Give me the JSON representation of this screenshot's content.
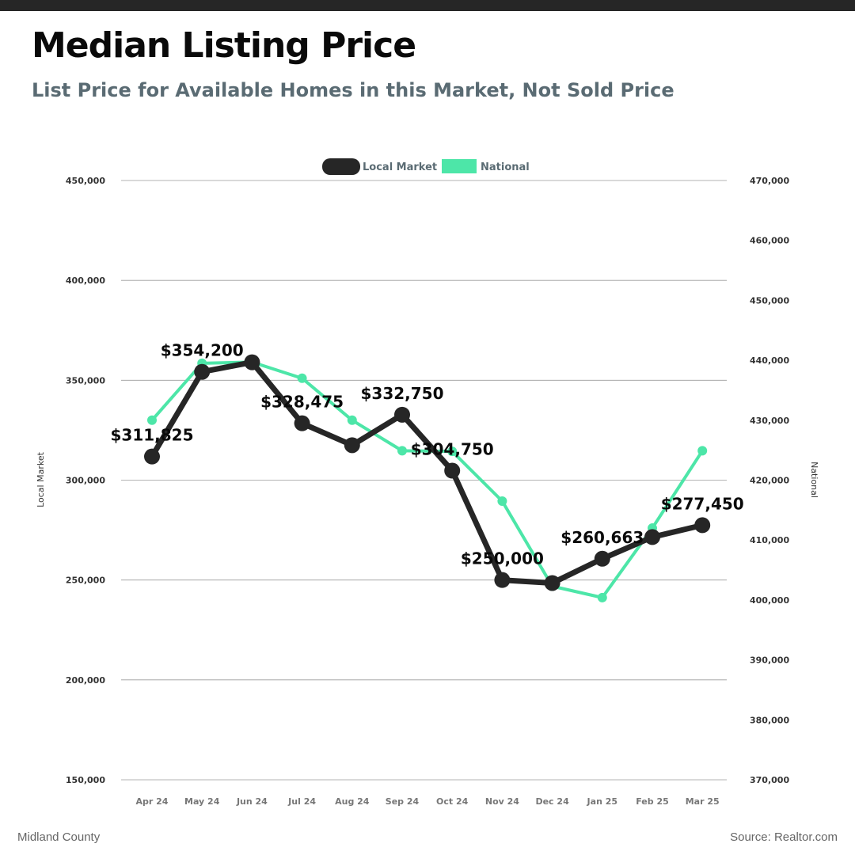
{
  "header": {
    "title": "Median Listing Price",
    "subtitle": "List Price for Available Homes in this Market, Not Sold Price"
  },
  "footer": {
    "region": "Midland County",
    "source": "Source: Realtor.com"
  },
  "colors": {
    "local": "#262626",
    "national": "#4de6a8",
    "grid": "#9a9a9a",
    "axis_text": "#333333",
    "legend_text": "#5a6b73"
  },
  "chart_data": {
    "type": "line",
    "categories": [
      "Apr 24",
      "May 24",
      "Jun 24",
      "Jul 24",
      "Aug 24",
      "Sep 24",
      "Oct 24",
      "Nov 24",
      "Dec 24",
      "Jan 25",
      "Feb 25",
      "Mar 25"
    ],
    "series": [
      {
        "name": "Local Market",
        "axis": "left",
        "values": [
          311825,
          354200,
          359000,
          328475,
          317500,
          332750,
          304750,
          250000,
          248500,
          260663,
          271500,
          277450
        ],
        "data_labels": [
          "$311,825",
          "$354,200",
          "",
          "$328,475",
          "",
          "$332,750",
          "$304,750",
          "$250,000",
          "",
          "$260,663",
          "",
          "$277,450"
        ]
      },
      {
        "name": "National",
        "axis": "right",
        "values": [
          430000,
          439500,
          439700,
          437000,
          430000,
          424900,
          424800,
          416500,
          402300,
          400400,
          412000,
          424900
        ]
      }
    ],
    "left_axis": {
      "label": "Local Market",
      "ylim": [
        150000,
        450000
      ],
      "ticks": [
        "150,000",
        "200,000",
        "250,000",
        "300,000",
        "350,000",
        "400,000",
        "450,000"
      ],
      "tick_values": [
        150000,
        200000,
        250000,
        300000,
        350000,
        400000,
        450000
      ]
    },
    "right_axis": {
      "label": "National",
      "ylim": [
        370000,
        470000
      ],
      "ticks": [
        "370,000",
        "380,000",
        "390,000",
        "400,000",
        "410,000",
        "420,000",
        "430,000",
        "440,000",
        "450,000",
        "460,000",
        "470,000"
      ],
      "tick_values": [
        370000,
        380000,
        390000,
        400000,
        410000,
        420000,
        430000,
        440000,
        450000,
        460000,
        470000
      ]
    },
    "legend": {
      "placement": "top-center",
      "entries": [
        "Local Market",
        "National"
      ]
    },
    "grid": true
  }
}
